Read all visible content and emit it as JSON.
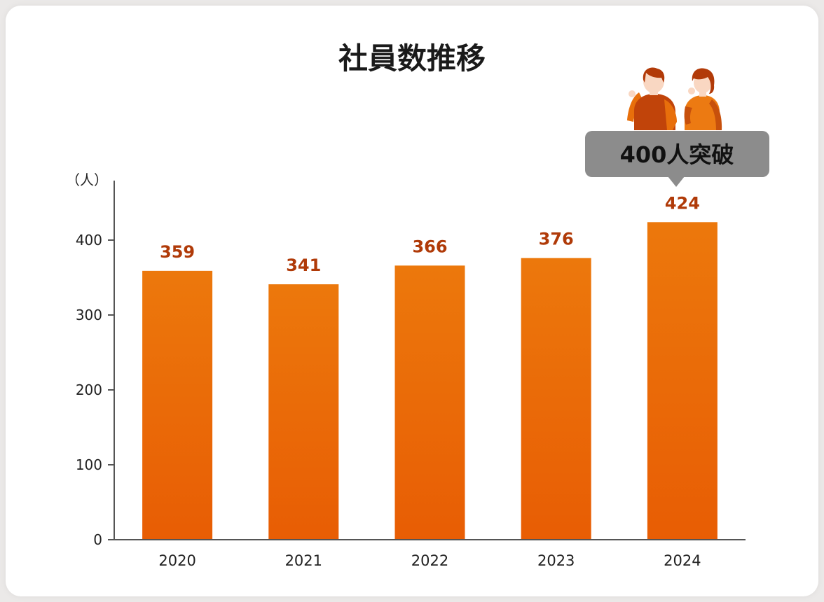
{
  "colors": {
    "bar_top": "#ec780c",
    "bar_bottom": "#e85d04",
    "value_label": "#b03a08",
    "axis": "#555555",
    "callout_bg": "#8c8c8c"
  },
  "icons": [
    "man-illustration",
    "woman-illustration"
  ],
  "callout": {
    "text": "400人突破",
    "category": "2024"
  },
  "chart_data": {
    "type": "bar",
    "title": "社員数推移",
    "unit_label": "（人）",
    "categories": [
      "2020",
      "2021",
      "2022",
      "2023",
      "2024"
    ],
    "values": [
      359,
      341,
      366,
      376,
      424
    ],
    "value_labels": [
      "359",
      "341",
      "366",
      "376",
      "424"
    ],
    "ylim": [
      0,
      480
    ],
    "yticks": [
      0,
      100,
      200,
      300,
      400
    ],
    "ytick_labels": [
      "0",
      "100",
      "200",
      "300",
      "400"
    ],
    "grid": false,
    "legend": "none"
  }
}
